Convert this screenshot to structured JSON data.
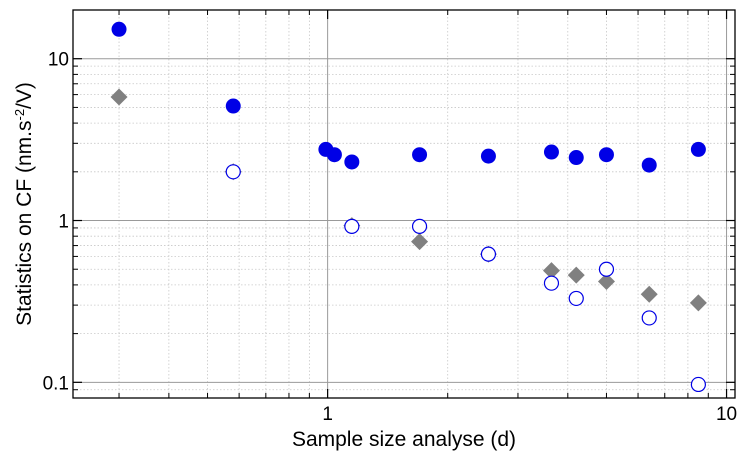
{
  "chart_data": {
    "type": "scatter",
    "title": "",
    "xlabel": "Sample size analyse (d)",
    "ylabel_parts": {
      "before": "Statistics on CF (nm.s",
      "superscript": "-2",
      "after": "/V)"
    },
    "x_scale": "log",
    "y_scale": "log",
    "xlim": [
      0.23,
      10.5
    ],
    "ylim": [
      0.08,
      20
    ],
    "x_ticks": [
      {
        "value": 1,
        "label": "1"
      },
      {
        "value": 10,
        "label": "10"
      }
    ],
    "y_ticks": [
      {
        "value": 0.1,
        "label": "0.1"
      },
      {
        "value": 1,
        "label": "1"
      },
      {
        "value": 10,
        "label": "10"
      }
    ],
    "grid": true,
    "series": [
      {
        "marker": "filled-circle",
        "color": "#0000e6",
        "points": [
          [
            0.3,
            15.2
          ],
          [
            0.58,
            5.1
          ],
          [
            0.99,
            2.75
          ],
          [
            1.04,
            2.55
          ],
          [
            1.15,
            2.3
          ],
          [
            1.7,
            2.55
          ],
          [
            2.53,
            2.5
          ],
          [
            3.64,
            2.65
          ],
          [
            4.2,
            2.45
          ],
          [
            5.0,
            2.55
          ],
          [
            6.4,
            2.2
          ],
          [
            8.5,
            2.75
          ]
        ]
      },
      {
        "marker": "filled-diamond",
        "color": "#808080",
        "points": [
          [
            0.3,
            5.8
          ],
          [
            0.58,
            2.0
          ],
          [
            1.15,
            0.93
          ],
          [
            1.7,
            0.74
          ],
          [
            2.53,
            0.62
          ],
          [
            3.64,
            0.49
          ],
          [
            4.2,
            0.46
          ],
          [
            5.0,
            0.42
          ],
          [
            6.4,
            0.35
          ],
          [
            8.5,
            0.31
          ]
        ]
      },
      {
        "marker": "open-circle",
        "color": "#0000e6",
        "points": [
          [
            0.58,
            2.0
          ],
          [
            1.15,
            0.92
          ],
          [
            1.7,
            0.92
          ],
          [
            2.53,
            0.62
          ],
          [
            3.64,
            0.41
          ],
          [
            4.2,
            0.33
          ],
          [
            5.0,
            0.5
          ],
          [
            6.4,
            0.25
          ],
          [
            8.5,
            0.097
          ]
        ]
      }
    ]
  }
}
